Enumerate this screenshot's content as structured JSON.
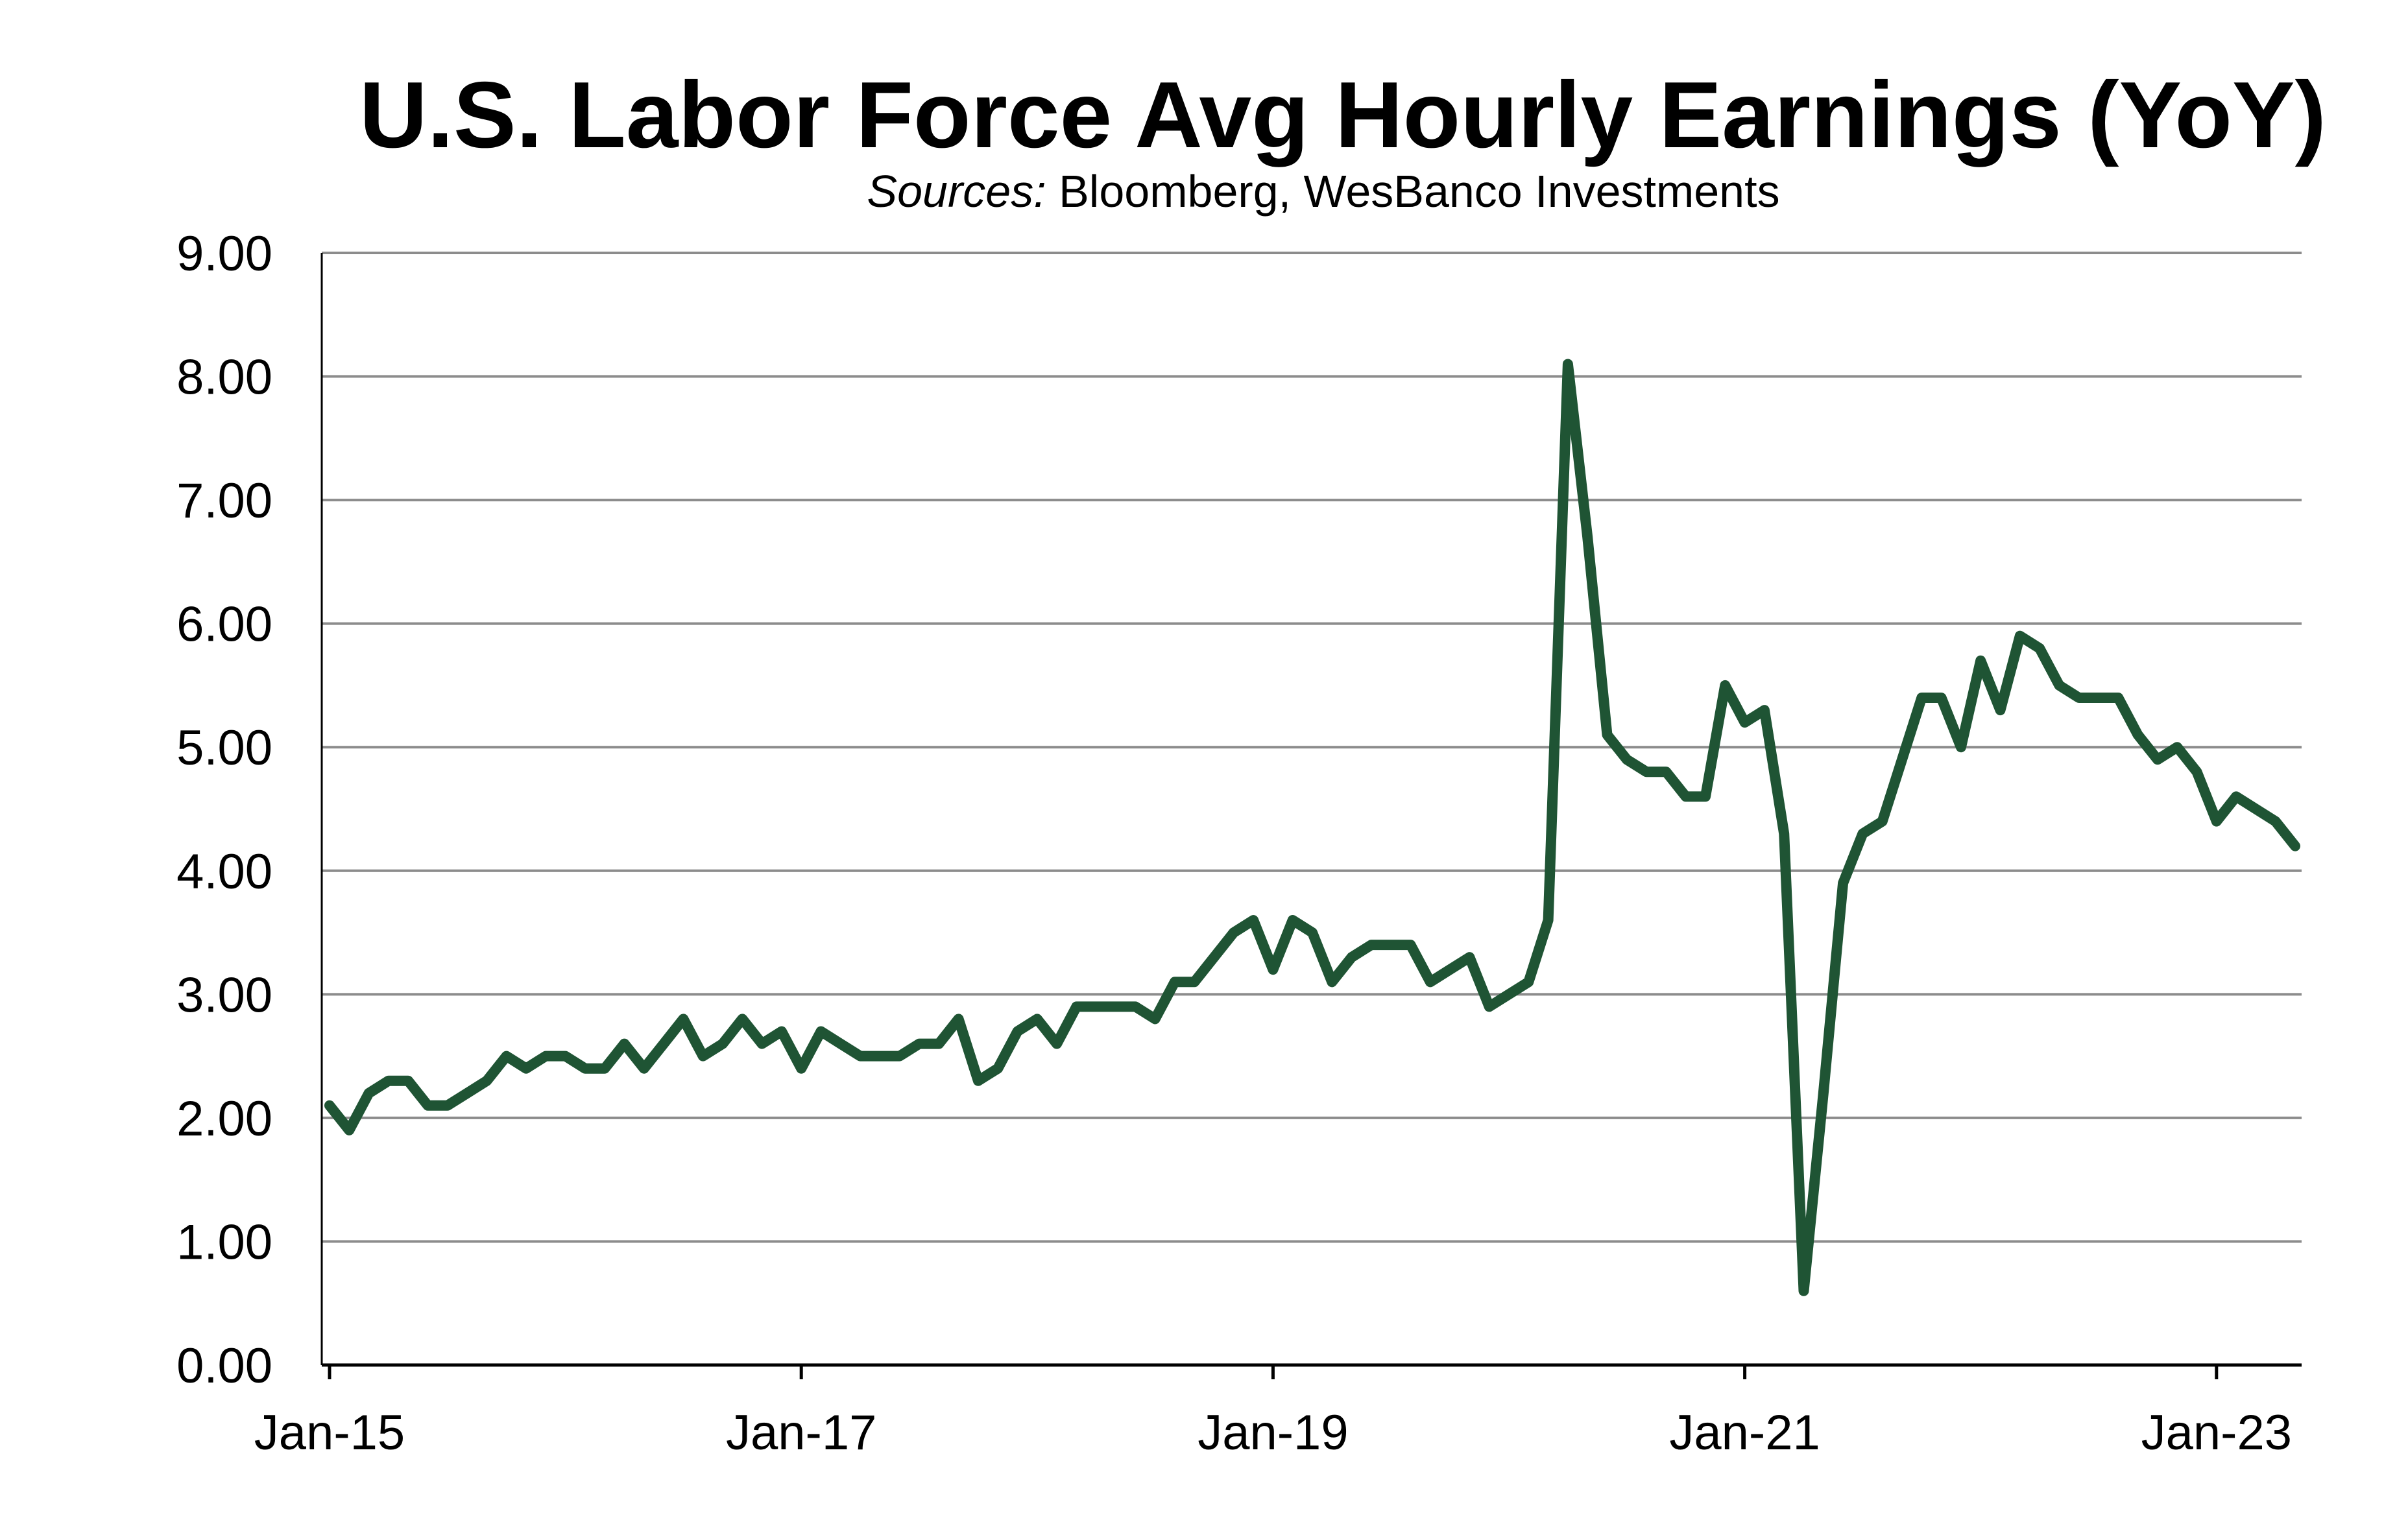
{
  "chart_data": {
    "type": "line",
    "title": "U.S. Labor Force Avg Hourly Earnings (YoY)",
    "subtitle": {
      "label": "Sources:",
      "text": "Bloomberg, WesBanco Investments"
    },
    "xlabel": "",
    "ylabel": "",
    "ylim": [
      0,
      9
    ],
    "yticks": [
      "0.00",
      "1.00",
      "2.00",
      "3.00",
      "4.00",
      "5.00",
      "6.00",
      "7.00",
      "8.00",
      "9.00"
    ],
    "xticks": [
      "Jan-15",
      "Jan-17",
      "Jan-19",
      "Jan-21",
      "Jan-23"
    ],
    "xrange": [
      "2015-01",
      "2023-05"
    ],
    "grid": true,
    "legend": "none",
    "line_color": "#1f5434",
    "series": [
      {
        "x": [
          "2015-01",
          "2015-02",
          "2015-03",
          "2015-04",
          "2015-05",
          "2015-06",
          "2015-07",
          "2015-08",
          "2015-09",
          "2015-10",
          "2015-11",
          "2015-12",
          "2016-01",
          "2016-02",
          "2016-03",
          "2016-04",
          "2016-05",
          "2016-06",
          "2016-07",
          "2016-08",
          "2016-09",
          "2016-10",
          "2016-11",
          "2016-12",
          "2017-01",
          "2017-02",
          "2017-03",
          "2017-04",
          "2017-05",
          "2017-06",
          "2017-07",
          "2017-08",
          "2017-09",
          "2017-10",
          "2017-11",
          "2017-12",
          "2018-01",
          "2018-02",
          "2018-03",
          "2018-04",
          "2018-05",
          "2018-06",
          "2018-07",
          "2018-08",
          "2018-09",
          "2018-10",
          "2018-11",
          "2018-12",
          "2019-01",
          "2019-02",
          "2019-03",
          "2019-04",
          "2019-05",
          "2019-06",
          "2019-07",
          "2019-08",
          "2019-09",
          "2019-10",
          "2019-11",
          "2019-12",
          "2020-01",
          "2020-02",
          "2020-03",
          "2020-04",
          "2020-05",
          "2020-06",
          "2020-07",
          "2020-08",
          "2020-09",
          "2020-10",
          "2020-11",
          "2020-12",
          "2021-01",
          "2021-02",
          "2021-03",
          "2021-04",
          "2021-05",
          "2021-06",
          "2021-07",
          "2021-08",
          "2021-09",
          "2021-10",
          "2021-11",
          "2021-12",
          "2022-01",
          "2022-02",
          "2022-03",
          "2022-04",
          "2022-05",
          "2022-06",
          "2022-07",
          "2022-08",
          "2022-09",
          "2022-10",
          "2022-11",
          "2022-12",
          "2023-01",
          "2023-02",
          "2023-03",
          "2023-04",
          "2023-05"
        ],
        "values": [
          2.1,
          1.9,
          2.2,
          2.3,
          2.3,
          2.1,
          2.1,
          2.2,
          2.3,
          2.5,
          2.4,
          2.5,
          2.5,
          2.4,
          2.4,
          2.6,
          2.4,
          2.6,
          2.8,
          2.5,
          2.6,
          2.8,
          2.6,
          2.7,
          2.4,
          2.7,
          2.6,
          2.5,
          2.5,
          2.5,
          2.6,
          2.6,
          2.8,
          2.3,
          2.4,
          2.7,
          2.8,
          2.6,
          2.9,
          2.9,
          2.9,
          2.9,
          2.8,
          3.1,
          3.1,
          3.3,
          3.5,
          3.6,
          3.2,
          3.6,
          3.5,
          3.1,
          3.3,
          3.4,
          3.4,
          3.4,
          3.1,
          3.2,
          3.3,
          2.9,
          3.0,
          3.1,
          3.6,
          8.1,
          6.7,
          5.1,
          4.9,
          4.8,
          4.8,
          4.6,
          4.6,
          5.5,
          5.2,
          5.3,
          4.3,
          0.6,
          2.2,
          3.9,
          4.3,
          4.4,
          4.9,
          5.4,
          5.4,
          5.0,
          5.7,
          5.3,
          5.9,
          5.8,
          5.5,
          5.4,
          5.4,
          5.4,
          5.1,
          4.9,
          5.0,
          4.8,
          4.4,
          4.6,
          4.5,
          4.4,
          4.2
        ]
      }
    ]
  }
}
